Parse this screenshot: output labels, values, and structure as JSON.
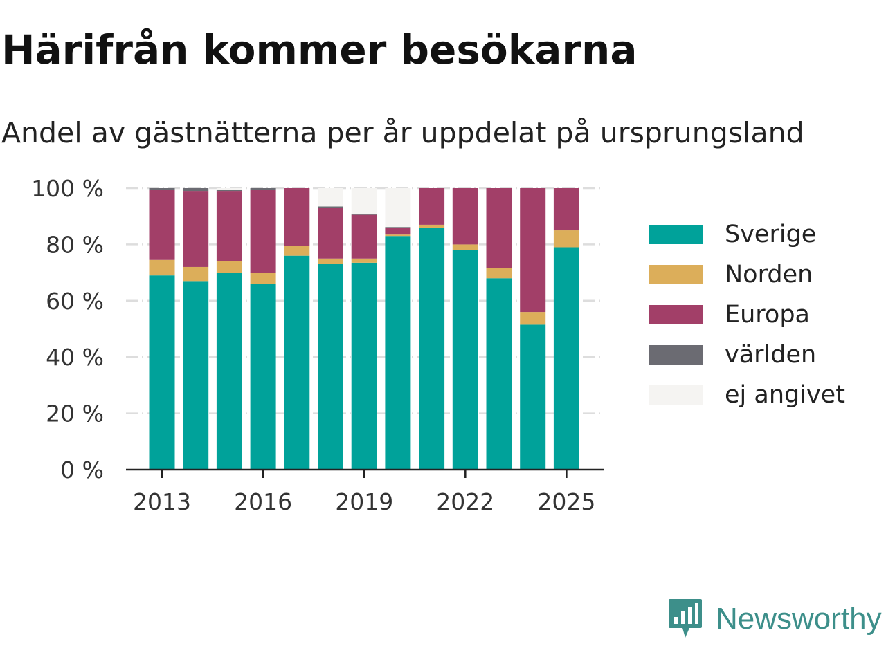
{
  "header": {
    "title": "Härifrån kommer besökarna",
    "subtitle": "Andel av gästnätterna per år uppdelat på ursprungsland"
  },
  "brand": {
    "name": "Newsworthy",
    "color": "#3d8f8a",
    "icon": "newsworthy-logo-icon"
  },
  "colors": {
    "Sverige": "#00a29a",
    "Norden": "#dcae5a",
    "Europa": "#a23f68",
    "världen": "#6b6b72",
    "ej angivet": "#f5f4f2"
  },
  "chart_data": {
    "type": "bar",
    "stacked": true,
    "categories": [
      2013,
      2014,
      2015,
      2016,
      2017,
      2018,
      2019,
      2020,
      2021,
      2022,
      2023,
      2024,
      2025
    ],
    "x_tick_labels": [
      "2013",
      "2016",
      "2019",
      "2022",
      "2025"
    ],
    "y_tick_labels": [
      "0 %",
      "20 %",
      "40 %",
      "60 %",
      "80 %",
      "100 %"
    ],
    "ylim": [
      0,
      100
    ],
    "grid": "horizontal",
    "legend_position": "right",
    "series": [
      {
        "name": "Sverige",
        "values": [
          69,
          67,
          70,
          66,
          76,
          73,
          73.5,
          83,
          86,
          78,
          68,
          51.5,
          79
        ]
      },
      {
        "name": "Norden",
        "values": [
          5.5,
          5,
          4,
          4,
          3.5,
          2,
          1.5,
          0.5,
          1,
          2,
          3.5,
          4.5,
          6
        ]
      },
      {
        "name": "Europa",
        "values": [
          25,
          27,
          25,
          29.5,
          20.5,
          18,
          15.5,
          2.5,
          13,
          20,
          28.5,
          44,
          15
        ]
      },
      {
        "name": "världen",
        "values": [
          0.5,
          1,
          0.5,
          0.5,
          0,
          0.5,
          0.2,
          0.2,
          0,
          0,
          0,
          0,
          0
        ]
      },
      {
        "name": "ej angivet",
        "values": [
          0,
          0,
          0.5,
          0,
          0,
          6.5,
          9.3,
          13.8,
          0,
          0,
          0,
          0,
          0
        ]
      }
    ]
  }
}
